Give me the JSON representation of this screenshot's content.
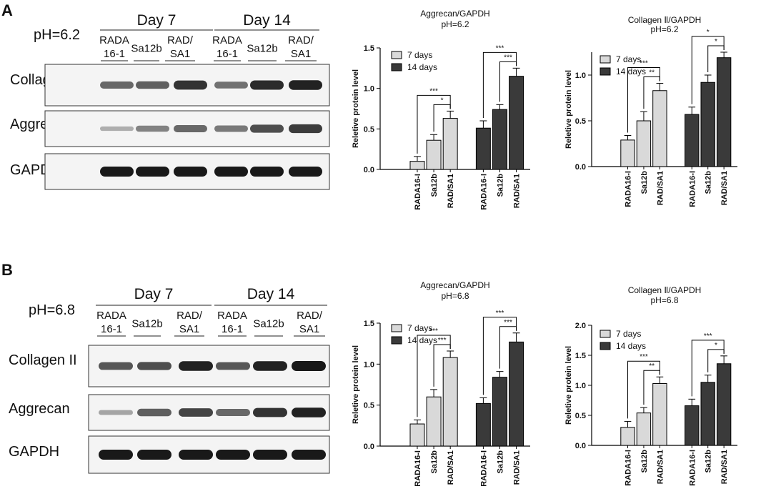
{
  "panels": [
    {
      "letter": "A",
      "ph_label": "pH=6.2",
      "day_headers": [
        "Day 7",
        "Day 14"
      ],
      "lanes": [
        {
          "line1": "RADA",
          "line2": "16-1"
        },
        {
          "line1": "Sa12b",
          "line2": ""
        },
        {
          "line1": "RAD/",
          "line2": "SA1"
        },
        {
          "line1": "RADA",
          "line2": "16-1"
        },
        {
          "line1": "Sa12b",
          "line2": ""
        },
        {
          "line1": "RAD/",
          "line2": "SA1"
        }
      ],
      "blots": [
        {
          "label": "Collagen II",
          "intensities": [
            0.55,
            0.6,
            0.85,
            0.5,
            0.9,
            0.95
          ]
        },
        {
          "label": "Aggrecan",
          "intensities": [
            0.15,
            0.4,
            0.55,
            0.45,
            0.7,
            0.8
          ]
        },
        {
          "label": "GAPDH",
          "intensities": [
            1.0,
            1.0,
            1.0,
            1.0,
            1.0,
            1.0
          ]
        }
      ]
    },
    {
      "letter": "B",
      "ph_label": "pH=6.8",
      "day_headers": [
        "Day 7",
        "Day 14"
      ],
      "lanes": [
        {
          "line1": "RADA",
          "line2": "16-1"
        },
        {
          "line1": "Sa12b",
          "line2": ""
        },
        {
          "line1": "RAD/",
          "line2": "SA1"
        },
        {
          "line1": "RADA",
          "line2": "16-1"
        },
        {
          "line1": "Sa12b",
          "line2": ""
        },
        {
          "line1": "RAD/",
          "line2": "SA1"
        }
      ],
      "blots": [
        {
          "label": "Collagen II",
          "intensities": [
            0.65,
            0.7,
            0.95,
            0.65,
            0.95,
            1.0
          ]
        },
        {
          "label": "Aggrecan",
          "intensities": [
            0.2,
            0.6,
            0.75,
            0.55,
            0.85,
            0.95
          ]
        },
        {
          "label": "GAPDH",
          "intensities": [
            1.0,
            1.0,
            1.0,
            1.0,
            1.0,
            1.0
          ]
        }
      ]
    }
  ],
  "chart_data": [
    {
      "type": "bar",
      "title": "Aggrecan/GAPDH",
      "subtitle": "pH=6.2",
      "ylabel": "Reletive protein level",
      "ylim": [
        0,
        1.5
      ],
      "yticks": [
        "0.0",
        "0.5",
        "1.0",
        "1.5"
      ],
      "categories": [
        "RADA16-I",
        "Sa12b",
        "RAD/SA1"
      ],
      "series": [
        {
          "name": "7 days",
          "color": "#d9d9d9",
          "values": [
            0.1,
            0.36,
            0.63
          ],
          "errors": [
            0.06,
            0.07,
            0.09
          ]
        },
        {
          "name": "14 days",
          "color": "#3a3a3a",
          "values": [
            0.51,
            0.74,
            1.15
          ],
          "errors": [
            0.09,
            0.06,
            0.1
          ]
        }
      ],
      "significance": [
        {
          "series": 0,
          "from": 0,
          "to": 2,
          "label": "***"
        },
        {
          "series": 0,
          "from": 1,
          "to": 2,
          "label": "*"
        },
        {
          "series": 1,
          "from": 0,
          "to": 2,
          "label": "***"
        },
        {
          "series": 1,
          "from": 1,
          "to": 2,
          "label": "***"
        }
      ],
      "legend": "top-left"
    },
    {
      "type": "bar",
      "title": "Collagen Ⅱ/GAPDH",
      "subtitle": "pH=6.2",
      "ylabel": "Reletive protein level",
      "ylim": [
        0,
        1.25
      ],
      "yticks": [
        "0.0",
        "0.5",
        "1.0"
      ],
      "categories": [
        "RADA16-I",
        "Sa12b",
        "RAD/SA1"
      ],
      "series": [
        {
          "name": "7 days",
          "color": "#d9d9d9",
          "values": [
            0.29,
            0.5,
            0.83
          ],
          "errors": [
            0.05,
            0.1,
            0.08
          ]
        },
        {
          "name": "14 days",
          "color": "#3a3a3a",
          "values": [
            0.57,
            0.92,
            1.19
          ],
          "errors": [
            0.08,
            0.08,
            0.06
          ]
        }
      ],
      "significance": [
        {
          "series": 0,
          "from": 0,
          "to": 2,
          "label": "***"
        },
        {
          "series": 0,
          "from": 1,
          "to": 2,
          "label": "**"
        },
        {
          "series": 1,
          "from": 0,
          "to": 2,
          "label": "*"
        },
        {
          "series": 1,
          "from": 1,
          "to": 2,
          "label": "*"
        }
      ],
      "legend": "top-left"
    },
    {
      "type": "bar",
      "title": "Aggrecan/GAPDH",
      "subtitle": "pH=6.8",
      "ylabel": "Reletive protein level",
      "ylim": [
        0,
        1.5
      ],
      "yticks": [
        "0.0",
        "0.5",
        "1.0",
        "1.5"
      ],
      "categories": [
        "RADA16-I",
        "Sa12b",
        "RAD/SA1"
      ],
      "series": [
        {
          "name": "7 days",
          "color": "#d9d9d9",
          "values": [
            0.27,
            0.6,
            1.08
          ],
          "errors": [
            0.05,
            0.09,
            0.08
          ]
        },
        {
          "name": "14 days",
          "color": "#3a3a3a",
          "values": [
            0.52,
            0.84,
            1.27
          ],
          "errors": [
            0.07,
            0.07,
            0.11
          ]
        }
      ],
      "significance": [
        {
          "series": 0,
          "from": 0,
          "to": 2,
          "label": "***"
        },
        {
          "series": 0,
          "from": 1,
          "to": 2,
          "label": "***"
        },
        {
          "series": 1,
          "from": 0,
          "to": 2,
          "label": "***"
        },
        {
          "series": 1,
          "from": 1,
          "to": 2,
          "label": "***"
        }
      ],
      "legend": "top-left"
    },
    {
      "type": "bar",
      "title": "Collagen Ⅱ/GAPDH",
      "subtitle": "pH=6.8",
      "ylabel": "Reletive protein level",
      "ylim": [
        0,
        2.0
      ],
      "yticks": [
        "0.0",
        "0.5",
        "1.0",
        "1.5",
        "2.0"
      ],
      "categories": [
        "RADA16-I",
        "Sa12b",
        "RAD/SA1"
      ],
      "series": [
        {
          "name": "7 days",
          "color": "#d9d9d9",
          "values": [
            0.3,
            0.54,
            1.03
          ],
          "errors": [
            0.1,
            0.09,
            0.11
          ]
        },
        {
          "name": "14 days",
          "color": "#3a3a3a",
          "values": [
            0.66,
            1.05,
            1.36
          ],
          "errors": [
            0.11,
            0.12,
            0.13
          ]
        }
      ],
      "significance": [
        {
          "series": 0,
          "from": 0,
          "to": 2,
          "label": "***"
        },
        {
          "series": 0,
          "from": 1,
          "to": 2,
          "label": "**"
        },
        {
          "series": 1,
          "from": 0,
          "to": 2,
          "label": "***"
        },
        {
          "series": 1,
          "from": 1,
          "to": 2,
          "label": "*"
        }
      ],
      "legend": "top-left"
    }
  ]
}
